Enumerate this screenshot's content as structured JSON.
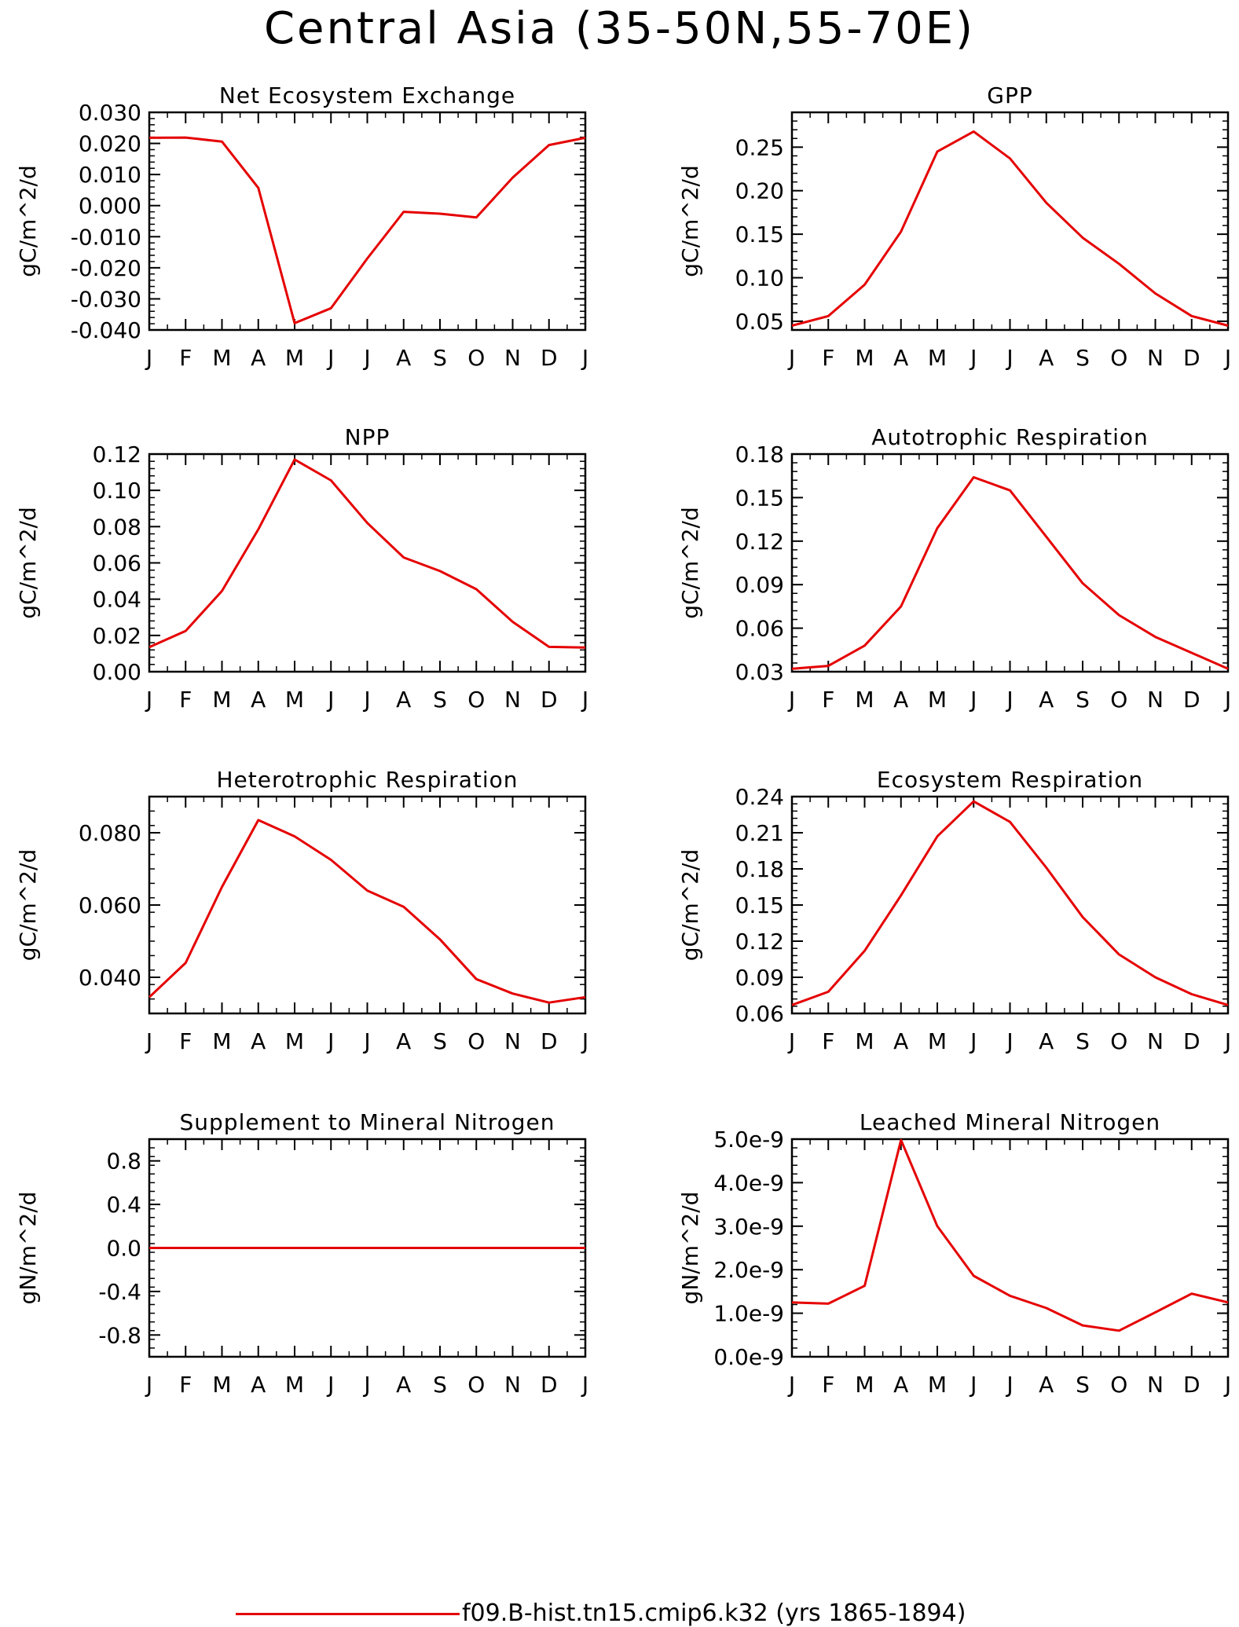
{
  "title": "Central Asia (35-50N,55-70E)",
  "legend": {
    "label": "f09.B-hist.tn15.cmip6.k32 (yrs 1865-1894)",
    "color": "#e50000"
  },
  "colors": {
    "series": "#e50000",
    "axes": "#000000"
  },
  "chart_data": [
    {
      "type": "line",
      "title": "Net Ecosystem Exchange",
      "ylabel": "gC/m^2/d",
      "xlabel": "",
      "x": [
        "J",
        "F",
        "M",
        "A",
        "M",
        "J",
        "J",
        "A",
        "S",
        "O",
        "N",
        "D",
        "J"
      ],
      "ylim": [
        -0.04,
        0.03
      ],
      "yticks": [
        -0.04,
        -0.03,
        -0.02,
        -0.01,
        0.0,
        0.01,
        0.02,
        0.03
      ],
      "ytick_labels": [
        "-0.040",
        "-0.030",
        "-0.020",
        "-0.010",
        "0.000",
        "0.010",
        "0.020",
        "0.030"
      ],
      "series": [
        {
          "name": "f09.B-hist.tn15.cmip6.k32 (yrs 1865-1894)",
          "values": [
            0.0218,
            0.0219,
            0.0206,
            0.0057,
            -0.0378,
            -0.033,
            -0.017,
            -0.002,
            -0.0026,
            -0.0038,
            0.009,
            0.0195,
            0.0218
          ]
        }
      ],
      "grid": false
    },
    {
      "type": "line",
      "title": "GPP",
      "ylabel": "gC/m^2/d",
      "xlabel": "",
      "x": [
        "J",
        "F",
        "M",
        "A",
        "M",
        "J",
        "J",
        "A",
        "S",
        "O",
        "N",
        "D",
        "J"
      ],
      "ylim": [
        0.04,
        0.29
      ],
      "yticks": [
        0.05,
        0.1,
        0.15,
        0.2,
        0.25
      ],
      "ytick_labels": [
        "0.05",
        "0.10",
        "0.15",
        "0.20",
        "0.25"
      ],
      "series": [
        {
          "name": "f09.B-hist.tn15.cmip6.k32 (yrs 1865-1894)",
          "values": [
            0.045,
            0.056,
            0.092,
            0.153,
            0.245,
            0.268,
            0.237,
            0.186,
            0.146,
            0.116,
            0.082,
            0.056,
            0.045
          ]
        }
      ],
      "grid": false
    },
    {
      "type": "line",
      "title": "NPP",
      "ylabel": "gC/m^2/d",
      "xlabel": "",
      "x": [
        "J",
        "F",
        "M",
        "A",
        "M",
        "J",
        "J",
        "A",
        "S",
        "O",
        "N",
        "D",
        "J"
      ],
      "ylim": [
        0.0,
        0.12
      ],
      "yticks": [
        0.0,
        0.02,
        0.04,
        0.06,
        0.08,
        0.1,
        0.12
      ],
      "ytick_labels": [
        "0.00",
        "0.02",
        "0.04",
        "0.06",
        "0.08",
        "0.10",
        "0.12"
      ],
      "series": [
        {
          "name": "f09.B-hist.tn15.cmip6.k32 (yrs 1865-1894)",
          "values": [
            0.0135,
            0.0225,
            0.0445,
            0.0785,
            0.117,
            0.1055,
            0.082,
            0.063,
            0.0555,
            0.0455,
            0.0275,
            0.0137,
            0.0133
          ]
        }
      ],
      "grid": false
    },
    {
      "type": "line",
      "title": "Autotrophic Respiration",
      "ylabel": "gC/m^2/d",
      "xlabel": "",
      "x": [
        "J",
        "F",
        "M",
        "A",
        "M",
        "J",
        "J",
        "A",
        "S",
        "O",
        "N",
        "D",
        "J"
      ],
      "ylim": [
        0.03,
        0.18
      ],
      "yticks": [
        0.03,
        0.06,
        0.09,
        0.12,
        0.15,
        0.18
      ],
      "ytick_labels": [
        "0.03",
        "0.06",
        "0.09",
        "0.12",
        "0.15",
        "0.18"
      ],
      "series": [
        {
          "name": "f09.B-hist.tn15.cmip6.k32 (yrs 1865-1894)",
          "values": [
            0.032,
            0.034,
            0.048,
            0.075,
            0.129,
            0.164,
            0.155,
            0.123,
            0.091,
            0.069,
            0.054,
            0.043,
            0.032
          ]
        }
      ],
      "grid": false
    },
    {
      "type": "line",
      "title": "Heterotrophic Respiration",
      "ylabel": "gC/m^2/d",
      "xlabel": "",
      "x": [
        "J",
        "F",
        "M",
        "A",
        "M",
        "J",
        "J",
        "A",
        "S",
        "O",
        "N",
        "D",
        "J"
      ],
      "ylim": [
        0.03,
        0.09
      ],
      "yticks": [
        0.04,
        0.06,
        0.08
      ],
      "ytick_labels": [
        "0.040",
        "0.060",
        "0.080"
      ],
      "series": [
        {
          "name": "f09.B-hist.tn15.cmip6.k32 (yrs 1865-1894)",
          "values": [
            0.0345,
            0.044,
            0.065,
            0.0835,
            0.079,
            0.0725,
            0.064,
            0.0595,
            0.0505,
            0.0395,
            0.0355,
            0.033,
            0.0345
          ]
        }
      ],
      "grid": false
    },
    {
      "type": "line",
      "title": "Ecosystem Respiration",
      "ylabel": "gC/m^2/d",
      "xlabel": "",
      "x": [
        "J",
        "F",
        "M",
        "A",
        "M",
        "J",
        "J",
        "A",
        "S",
        "O",
        "N",
        "D",
        "J"
      ],
      "ylim": [
        0.06,
        0.24
      ],
      "yticks": [
        0.06,
        0.09,
        0.12,
        0.15,
        0.18,
        0.21,
        0.24
      ],
      "ytick_labels": [
        "0.06",
        "0.09",
        "0.12",
        "0.15",
        "0.18",
        "0.21",
        "0.24"
      ],
      "series": [
        {
          "name": "f09.B-hist.tn15.cmip6.k32 (yrs 1865-1894)",
          "values": [
            0.067,
            0.078,
            0.112,
            0.158,
            0.207,
            0.236,
            0.219,
            0.181,
            0.14,
            0.109,
            0.09,
            0.076,
            0.067
          ]
        }
      ],
      "grid": false
    },
    {
      "type": "line",
      "title": "Supplement to Mineral Nitrogen",
      "ylabel": "gN/m^2/d",
      "xlabel": "",
      "x": [
        "J",
        "F",
        "M",
        "A",
        "M",
        "J",
        "J",
        "A",
        "S",
        "O",
        "N",
        "D",
        "J"
      ],
      "ylim": [
        -1.0,
        1.0
      ],
      "yticks": [
        -0.8,
        -0.4,
        0.0,
        0.4,
        0.8
      ],
      "ytick_labels": [
        "-0.8",
        "-0.4",
        "0.0",
        "0.4",
        "0.8"
      ],
      "series": [
        {
          "name": "f09.B-hist.tn15.cmip6.k32 (yrs 1865-1894)",
          "values": [
            0,
            0,
            0,
            0,
            0,
            0,
            0,
            0,
            0,
            0,
            0,
            0,
            0
          ]
        }
      ],
      "grid": false
    },
    {
      "type": "line",
      "title": "Leached Mineral Nitrogen",
      "ylabel": "gN/m^2/d",
      "xlabel": "",
      "x": [
        "J",
        "F",
        "M",
        "A",
        "M",
        "J",
        "J",
        "A",
        "S",
        "O",
        "N",
        "D",
        "J"
      ],
      "ylim": [
        0.0,
        5e-09
      ],
      "yticks": [
        0.0,
        1e-09,
        2e-09,
        3e-09,
        4e-09,
        5e-09
      ],
      "ytick_labels": [
        "0.0e-9",
        "1.0e-9",
        "2.0e-9",
        "3.0e-9",
        "4.0e-9",
        "5.0e-9"
      ],
      "series": [
        {
          "name": "f09.B-hist.tn15.cmip6.k32 (yrs 1865-1894)",
          "values": [
            1.25e-09,
            1.22e-09,
            1.63e-09,
            4.98e-09,
            3e-09,
            1.86e-09,
            1.4e-09,
            1.12e-09,
            7.2e-10,
            6e-10,
            1.02e-09,
            1.45e-09,
            1.25e-09
          ]
        }
      ],
      "grid": false
    }
  ]
}
